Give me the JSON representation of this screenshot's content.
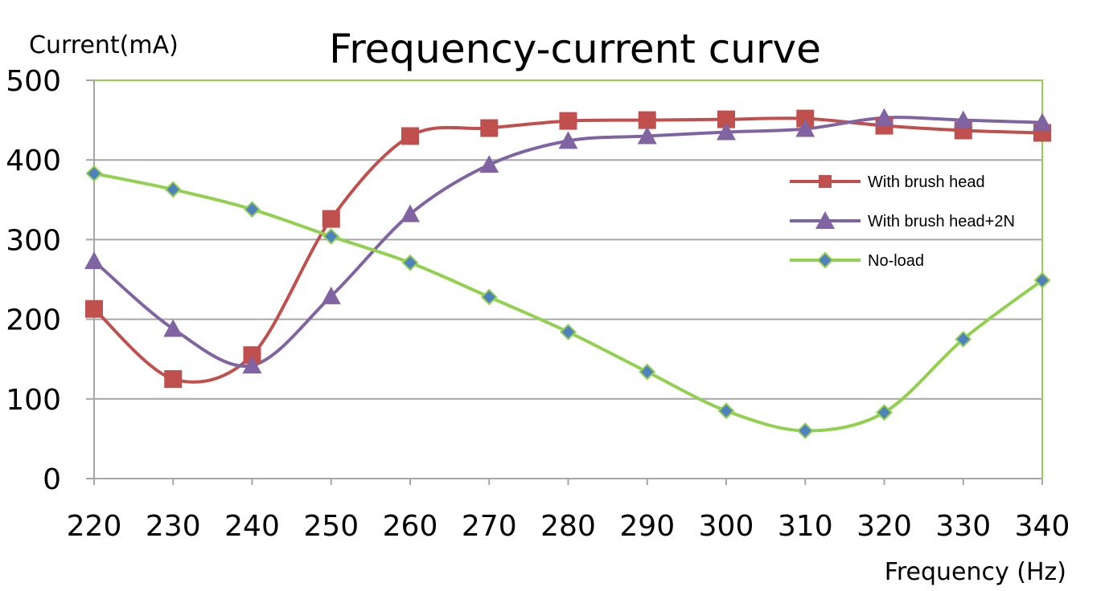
{
  "chart_data": {
    "type": "line",
    "title": "Frequency-current curve",
    "xlabel": "Frequency (Hz)",
    "ylabel": "Current(mA)",
    "x": [
      220,
      230,
      240,
      250,
      260,
      270,
      280,
      290,
      300,
      310,
      320,
      330,
      340
    ],
    "xticks": [
      "220",
      "230",
      "240",
      "250",
      "260",
      "270",
      "280",
      "290",
      "300",
      "310",
      "320",
      "330",
      "340"
    ],
    "yticks": [
      "0",
      "100",
      "200",
      "300",
      "400",
      "500"
    ],
    "ylim": [
      0,
      500
    ],
    "grid": "horizontal",
    "legend_position": "right",
    "series": [
      {
        "name": "With brush head",
        "marker": "square",
        "color": "#c0504d",
        "values": [
          213,
          125,
          155,
          326,
          430,
          440,
          449,
          450,
          451,
          452,
          443,
          437,
          434
        ]
      },
      {
        "name": "With brush head+2N",
        "marker": "triangle",
        "color": "#8064a2",
        "values": [
          273,
          188,
          142,
          229,
          332,
          394,
          424,
          430,
          435,
          439,
          453,
          450,
          447
        ]
      },
      {
        "name": "No-load",
        "marker": "diamond",
        "color": "#92d050",
        "marker_fill": "#4f81bd",
        "values": [
          383,
          363,
          338,
          304,
          271,
          228,
          184,
          134,
          85,
          60,
          83,
          175,
          249
        ]
      }
    ]
  }
}
